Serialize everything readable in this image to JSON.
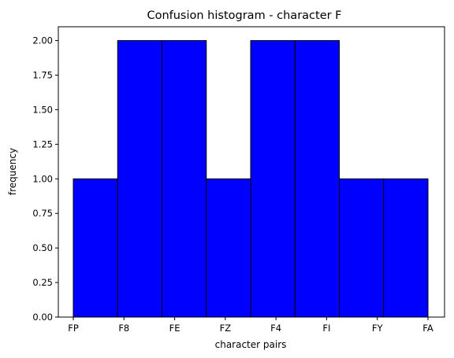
{
  "chart_data": {
    "type": "bar",
    "title": "Confusion histogram - character F",
    "xlabel": "character pairs",
    "ylabel": "frequency",
    "categories": [
      "FP",
      "F8",
      "FE",
      "FZ",
      "F4",
      "FI",
      "FY",
      "FA"
    ],
    "values": [
      1,
      2,
      2,
      1,
      2,
      2,
      1,
      1
    ],
    "ylim": [
      0,
      2.1
    ],
    "yticks": [
      "0.00",
      "0.25",
      "0.50",
      "0.75",
      "1.00",
      "1.25",
      "1.50",
      "1.75",
      "2.00"
    ],
    "bar_color": "#0000ff",
    "edge_color": "#000000",
    "grid": false
  }
}
